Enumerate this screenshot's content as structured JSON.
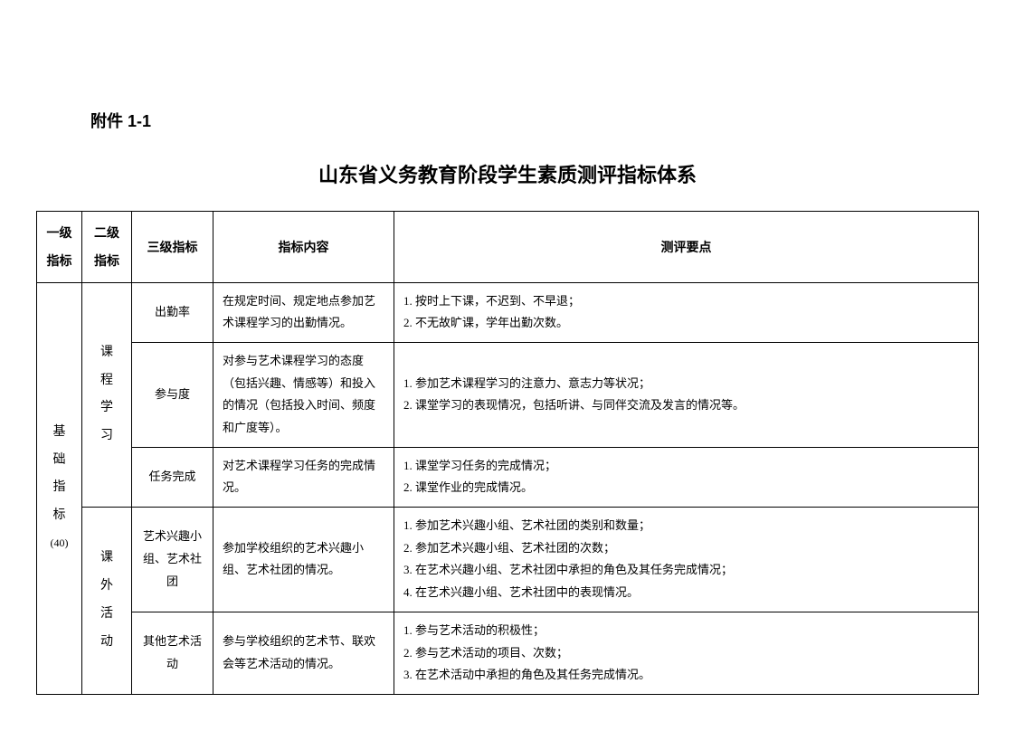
{
  "appendix": "附件 1-1",
  "title": "山东省义务教育阶段学生素质测评指标体系",
  "headers": {
    "lvl1": "一级\n指标",
    "lvl2": "二级\n指标",
    "lvl3": "三级指标",
    "content": "指标内容",
    "points": "测评要点"
  },
  "lvl1": {
    "name": "基\n础\n指\n标",
    "weight": "(40)"
  },
  "lvl2_a": "课\n程\n学\n习",
  "lvl2_b": "课\n外\n活\n动",
  "rows": [
    {
      "lvl3": "出勤率",
      "content": "在规定时间、规定地点参加艺术课程学习的出勤情况。",
      "points": "1. 按时上下课，不迟到、不早退；\n2. 不无故旷课，学年出勤次数。"
    },
    {
      "lvl3": "参与度",
      "content": "对参与艺术课程学习的态度（包括兴趣、情感等）和投入的情况（包括投入时间、频度和广度等）。",
      "points": "1. 参加艺术课程学习的注意力、意志力等状况；\n2. 课堂学习的表现情况，包括听讲、与同伴交流及发言的情况等。"
    },
    {
      "lvl3": "任务完成",
      "content": "对艺术课程学习任务的完成情况。",
      "points": "1. 课堂学习任务的完成情况；\n2. 课堂作业的完成情况。"
    },
    {
      "lvl3": "艺术兴趣小组、艺术社团",
      "content": "参加学校组织的艺术兴趣小组、艺术社团的情况。",
      "points": "1. 参加艺术兴趣小组、艺术社团的类别和数量；\n2. 参加艺术兴趣小组、艺术社团的次数；\n3. 在艺术兴趣小组、艺术社团中承担的角色及其任务完成情况；\n4. 在艺术兴趣小组、艺术社团中的表现情况。"
    },
    {
      "lvl3": "其他艺术活动",
      "content": "参与学校组织的艺术节、联欢会等艺术活动的情况。",
      "points": "1. 参与艺术活动的积极性；\n2. 参与艺术活动的项目、次数；\n3. 在艺术活动中承担的角色及其任务完成情况。"
    }
  ]
}
